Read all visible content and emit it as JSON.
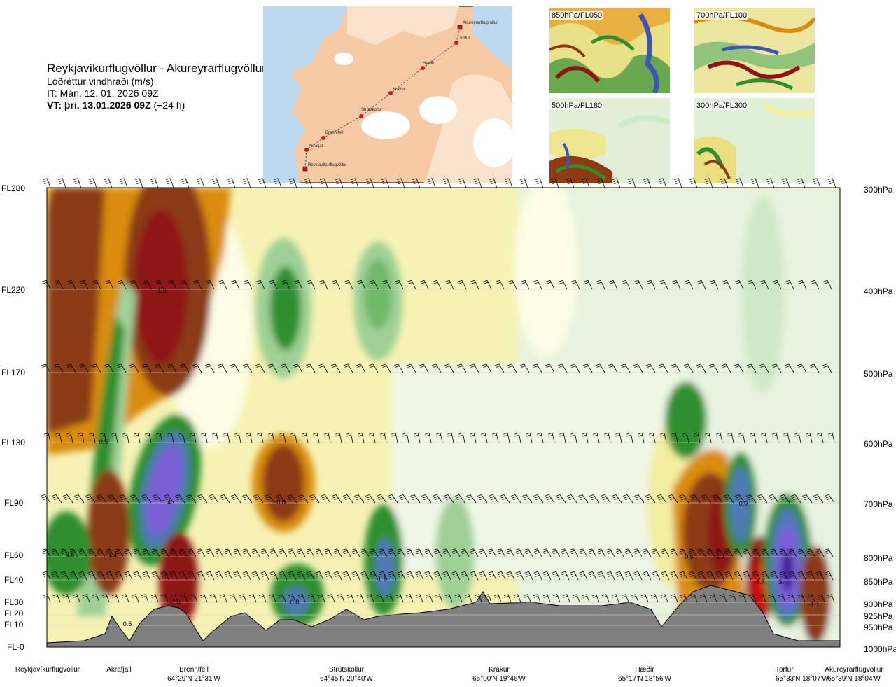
{
  "header": {
    "route": "Reykjavíkurflugvöllur - Akureyrarflugvöllur",
    "variable": "Lóðréttur vindhraði (m/s)",
    "it": "IT: Mán. 12. 01. 2026 09Z",
    "vt": "VT: þri. 13.01.2026 09Z",
    "vt_lead": "(+24 h)"
  },
  "route_map": {
    "stations": [
      "Akureyrarflugvöllur",
      "Torfur",
      "Hæðir",
      "Krákur",
      "Strútskollur",
      "Brennifell",
      "Akrafjall",
      "Reykjavíkurflugvöllur"
    ]
  },
  "thumbnails": [
    {
      "label": "850hPa/FL050"
    },
    {
      "label": "700hPa/FL100"
    },
    {
      "label": "500hPa/FL180"
    },
    {
      "label": "300hPa/FL300"
    }
  ],
  "colors": {
    "terrain": "#7f7f7f",
    "strong_down": "#8f1515",
    "down": "#8b3a12",
    "weak_down": "#d98c10",
    "slight_down": "#e8c71a",
    "faint_down": "#f3eea0",
    "neutral": "#fdfde6",
    "faint_up": "#cfe8c5",
    "weak_up": "#9fd095",
    "up": "#2e8f2e",
    "strong_up": "#4f79b5",
    "very_strong_up": "#7b5fd6"
  },
  "chart_data": {
    "type": "heatmap",
    "title": "Lóðréttur vindhraði (m/s)",
    "left_axis_labels": [
      "FL280",
      "FL220",
      "FL170",
      "FL130",
      "FL90",
      "FL60",
      "FL40",
      "FL30",
      "FL20",
      "FL10",
      "FL-0"
    ],
    "right_axis_labels": [
      "300hPa",
      "400hPa",
      "500hPa",
      "600hPa",
      "700hPa",
      "800hPa",
      "850hPa",
      "900hPa",
      "925hPa",
      "950hPa",
      "1000hPa"
    ],
    "locations": [
      {
        "name": "Reykjavíkurflugvöllur",
        "coord": ""
      },
      {
        "name": "Akrafjall",
        "coord": ""
      },
      {
        "name": "Brennifell",
        "coord": "64°29'N 21°31'W"
      },
      {
        "name": "Strútskollur",
        "coord": "64°45'N 20°40'W"
      },
      {
        "name": "Krákur",
        "coord": "65°00'N 19°46'W"
      },
      {
        "name": "Hæðir",
        "coord": "65°17'N 18°56'W"
      },
      {
        "name": "Torfur",
        "coord": "65°33'N 18°07'W"
      },
      {
        "name": "Akureyrarflugvöllur",
        "coord": "65°39'N 18°04'W"
      }
    ],
    "extrema_labels": [
      "-1.3",
      "0.5",
      "1.4",
      "-0.8",
      "0.6",
      "-1.1",
      "-2.0",
      "0.5",
      "0.8",
      "1.1",
      "0.9",
      "-0.6",
      "-1.2",
      "-3.7",
      "3.",
      "-1.1"
    ]
  }
}
